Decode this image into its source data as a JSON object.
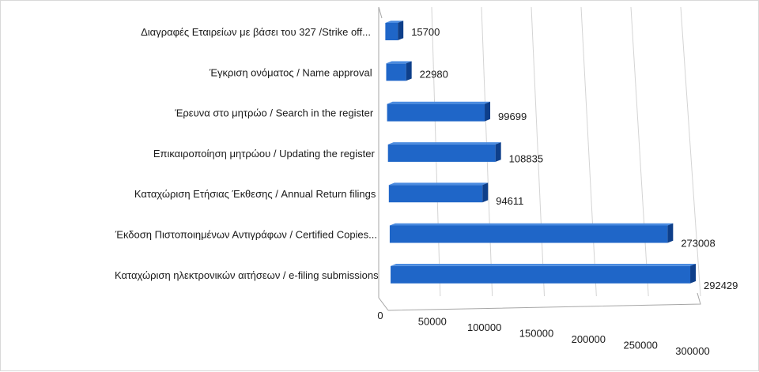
{
  "chart_data": {
    "type": "bar",
    "orientation": "horizontal",
    "three_d": true,
    "title": "",
    "categories": [
      "Διαγραφές Εταιρείων  με  βάσει του 327 /Strike off...",
      "Έγκριση ονόματος  / Name approval",
      "Έρευνα στο μητρώο / Search in the register",
      "Επικαιροποίηση μητρώου / Updating the register",
      "Καταχώριση Ετήσιας Έκθεσης / Annual Return filings",
      "Έκδοση Πιστοποιημένων Αντιγράφων  / Certified Copies...",
      "Καταχώριση ηλεκτρονικών αιτήσεων / e-filing submissions"
    ],
    "values": [
      15700,
      22980,
      99699,
      108835,
      94611,
      273008,
      292429
    ],
    "value_labels": [
      "15700",
      "22980",
      "99699",
      "108835",
      "94611",
      "273008",
      "292429"
    ],
    "xlim": [
      0,
      300000
    ],
    "x_ticks": [
      "0",
      "50000",
      "100000",
      "150000",
      "200000",
      "250000",
      "300000"
    ],
    "gridlines": true,
    "legend": "none",
    "colors": {
      "bar_front": "#1f66c8",
      "bar_top": "#4a8be0",
      "bar_side": "#0e3f8a",
      "grid": "#d4d4d4",
      "axis": "#a6a6a6"
    }
  }
}
